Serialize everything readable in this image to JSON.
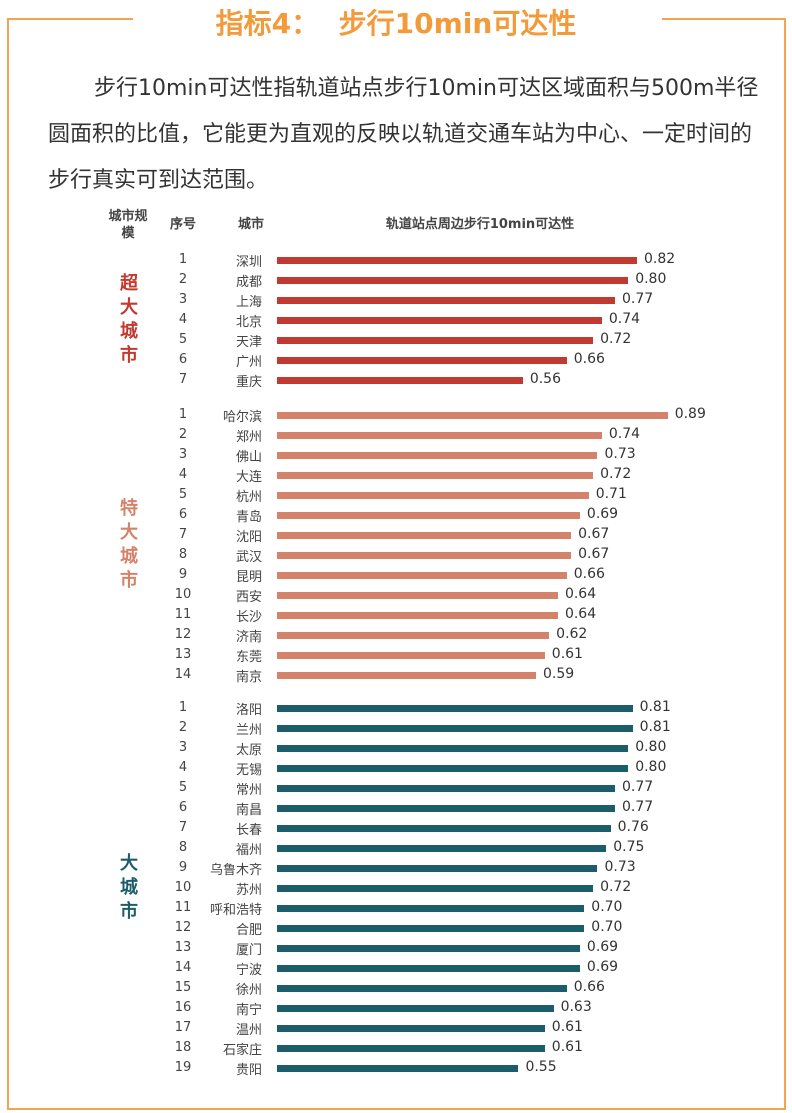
{
  "title": "指标4：  步行10min可达性",
  "paragraph": "步行10min可达性指轨道站点步行10min可达区域面积与500m半径圆面积的比值，它能更为直观的反映以轨道交通车站为中心、一定时间的步行真实可到达范围。",
  "headers": {
    "scale": "城市规模",
    "index": "序号",
    "city": "城市",
    "metric": "轨道站点周边步行10min可达性"
  },
  "chart_data": {
    "type": "bar",
    "orientation": "horizontal",
    "title": "轨道站点周边步行10min可达性",
    "xlim": [
      0,
      1
    ],
    "groups": [
      {
        "name": "超大城市",
        "color": "#c2392f",
        "cities": [
          "深圳",
          "成都",
          "上海",
          "北京",
          "天津",
          "广州",
          "重庆"
        ],
        "values": [
          0.82,
          0.8,
          0.77,
          0.74,
          0.72,
          0.66,
          0.56
        ]
      },
      {
        "name": "特大城市",
        "color": "#d4836a",
        "cities": [
          "哈尔滨",
          "郑州",
          "佛山",
          "大连",
          "杭州",
          "青岛",
          "沈阳",
          "武汉",
          "昆明",
          "西安",
          "长沙",
          "济南",
          "东莞",
          "南京"
        ],
        "values": [
          0.89,
          0.74,
          0.73,
          0.72,
          0.71,
          0.69,
          0.67,
          0.67,
          0.66,
          0.64,
          0.64,
          0.62,
          0.61,
          0.59
        ]
      },
      {
        "name": "大城市",
        "color": "#1c5d6b",
        "cities": [
          "洛阳",
          "兰州",
          "太原",
          "无锡",
          "常州",
          "南昌",
          "长春",
          "福州",
          "乌鲁木齐",
          "苏州",
          "呼和浩特",
          "合肥",
          "厦门",
          "宁波",
          "徐州",
          "南宁",
          "温州",
          "石家庄",
          "贵阳"
        ],
        "values": [
          0.81,
          0.81,
          0.8,
          0.8,
          0.77,
          0.77,
          0.76,
          0.75,
          0.73,
          0.72,
          0.7,
          0.7,
          0.69,
          0.69,
          0.66,
          0.63,
          0.61,
          0.61,
          0.55
        ]
      }
    ]
  }
}
